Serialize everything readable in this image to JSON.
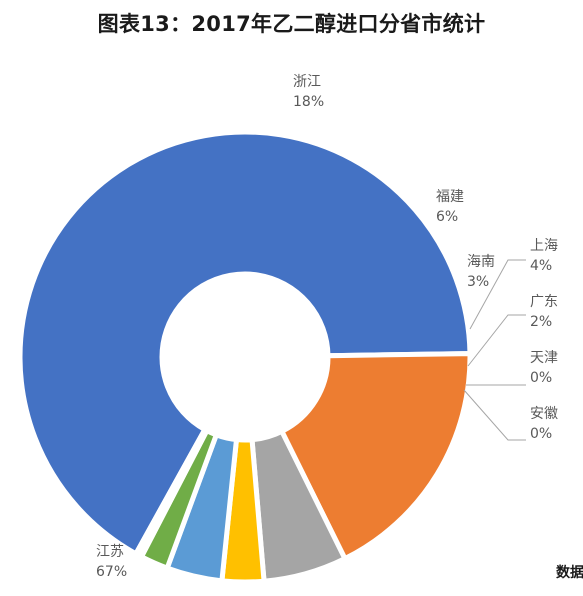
{
  "title": "图表13：2017年乙二醇进口分省市统计",
  "source_text": "数据",
  "colors": {
    "background": "#ffffff",
    "leader_line": "#a6a6a6",
    "label_text": "#595959"
  },
  "chart_data": {
    "type": "pie",
    "variant": "donut",
    "title": "图表13：2017年乙二醇进口分省市统计",
    "slices": [
      {
        "name": "江苏",
        "value": 67,
        "label": "67%",
        "color": "#4472c4"
      },
      {
        "name": "浙江",
        "value": 18,
        "label": "18%",
        "color": "#ed7d31"
      },
      {
        "name": "福建",
        "value": 6,
        "label": "6%",
        "color": "#a5a5a5"
      },
      {
        "name": "海南",
        "value": 3,
        "label": "3%",
        "color": "#ffc000"
      },
      {
        "name": "上海",
        "value": 4,
        "label": "4%",
        "color": "#5b9bd5"
      },
      {
        "name": "广东",
        "value": 2,
        "label": "2%",
        "color": "#70ad47"
      },
      {
        "name": "天津",
        "value": 0,
        "label": "0%",
        "color": "#264478"
      },
      {
        "name": "安徽",
        "value": 0,
        "label": "0%",
        "color": "#9e480e"
      }
    ],
    "legend": "none"
  }
}
